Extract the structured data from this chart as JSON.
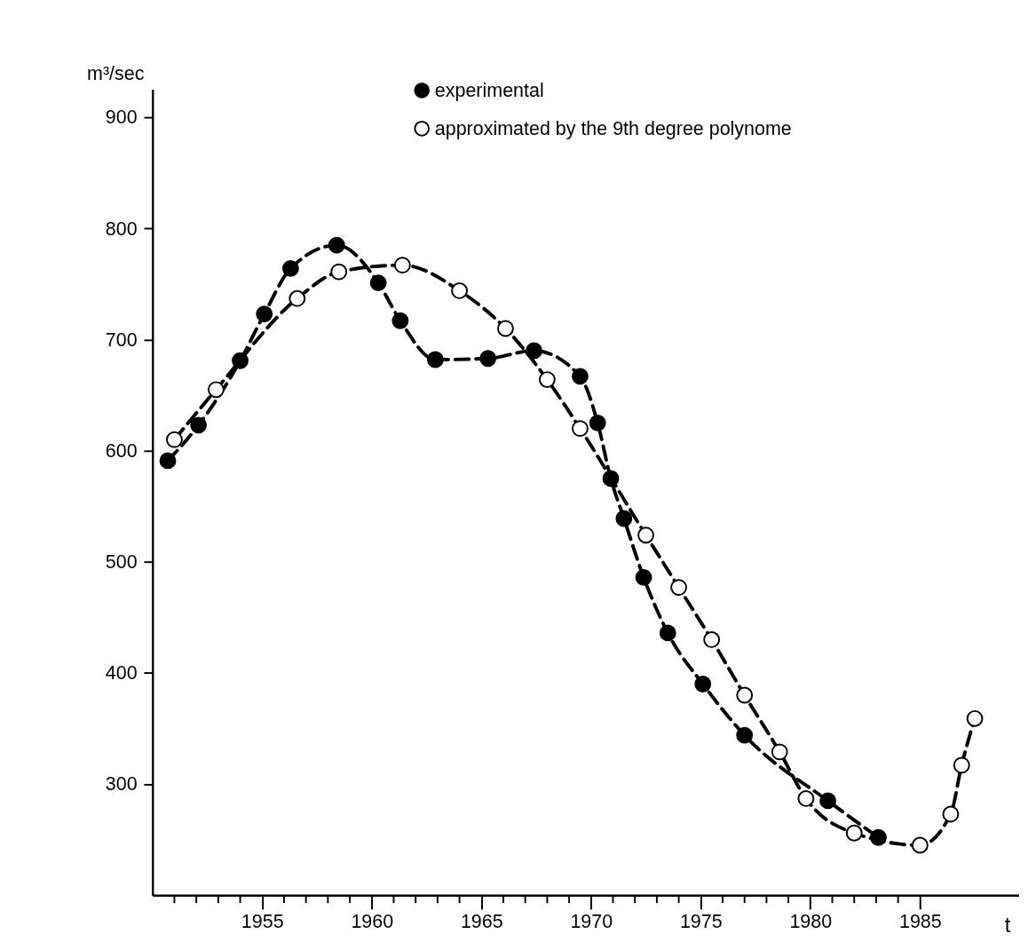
{
  "chart_data": {
    "type": "line",
    "ylabel": "m³/sec",
    "xlabel": "t",
    "xlim": [
      1950,
      1989.5
    ],
    "ylim": [
      200,
      925
    ],
    "xticks": [
      {
        "value": 1951,
        "label": null
      },
      {
        "value": 1952,
        "label": null
      },
      {
        "value": 1953,
        "label": null
      },
      {
        "value": 1954,
        "label": null
      },
      1955,
      {
        "value": 1956,
        "label": null
      },
      {
        "value": 1957,
        "label": null
      },
      {
        "value": 1958,
        "label": null
      },
      {
        "value": 1959,
        "label": null
      },
      1960,
      {
        "value": 1961,
        "label": null
      },
      {
        "value": 1962,
        "label": null
      },
      {
        "value": 1963,
        "label": null
      },
      {
        "value": 1964,
        "label": null
      },
      1965,
      {
        "value": 1966,
        "label": null
      },
      {
        "value": 1967,
        "label": null
      },
      {
        "value": 1968,
        "label": null
      },
      {
        "value": 1969,
        "label": null
      },
      1970,
      {
        "value": 1971,
        "label": null
      },
      {
        "value": 1972,
        "label": null
      },
      {
        "value": 1973,
        "label": null
      },
      {
        "value": 1974,
        "label": null
      },
      1975,
      {
        "value": 1976,
        "label": null
      },
      {
        "value": 1977,
        "label": null
      },
      {
        "value": 1978,
        "label": null
      },
      {
        "value": 1979,
        "label": null
      },
      1980,
      {
        "value": 1981,
        "label": null
      },
      {
        "value": 1982,
        "label": null
      },
      {
        "value": 1983,
        "label": null
      },
      {
        "value": 1984,
        "label": null
      },
      1985
    ],
    "yticks": [
      300,
      400,
      500,
      600,
      700,
      800,
      900
    ],
    "grid": false,
    "legend": "top",
    "marker": "circle",
    "line_style": "dashed",
    "series": [
      {
        "name": "experimental",
        "color": "#000000",
        "x": [
          1950.7,
          1952.1,
          1954.0,
          1955.1,
          1956.3,
          1958.4,
          1960.3,
          1961.3,
          1962.9,
          1965.3,
          1967.4,
          1969.5,
          1970.3,
          1970.9,
          1971.5,
          1972.4,
          1973.5,
          1975.1,
          1977.0,
          1980.8,
          1983.1
        ],
        "values": [
          591,
          623,
          681,
          723,
          764,
          785,
          751,
          717,
          682,
          683,
          690,
          667,
          625,
          575,
          539,
          486,
          436,
          390,
          344,
          285,
          252
        ]
      },
      {
        "name": "approximated by the 9th degree polynome",
        "color": "#000000",
        "x": [
          1951.0,
          1952.9,
          1956.6,
          1958.5,
          1961.4,
          1964.0,
          1966.1,
          1968.0,
          1969.5,
          1972.5,
          1974.0,
          1975.5,
          1977.0,
          1978.6,
          1979.8,
          1982.0,
          1985.0,
          1986.4,
          1986.9,
          1987.5
        ],
        "values": [
          610,
          655,
          737,
          761,
          767,
          744,
          710,
          664,
          620,
          524,
          477,
          430,
          380,
          329,
          287,
          256,
          245,
          273,
          317,
          359
        ]
      }
    ]
  }
}
